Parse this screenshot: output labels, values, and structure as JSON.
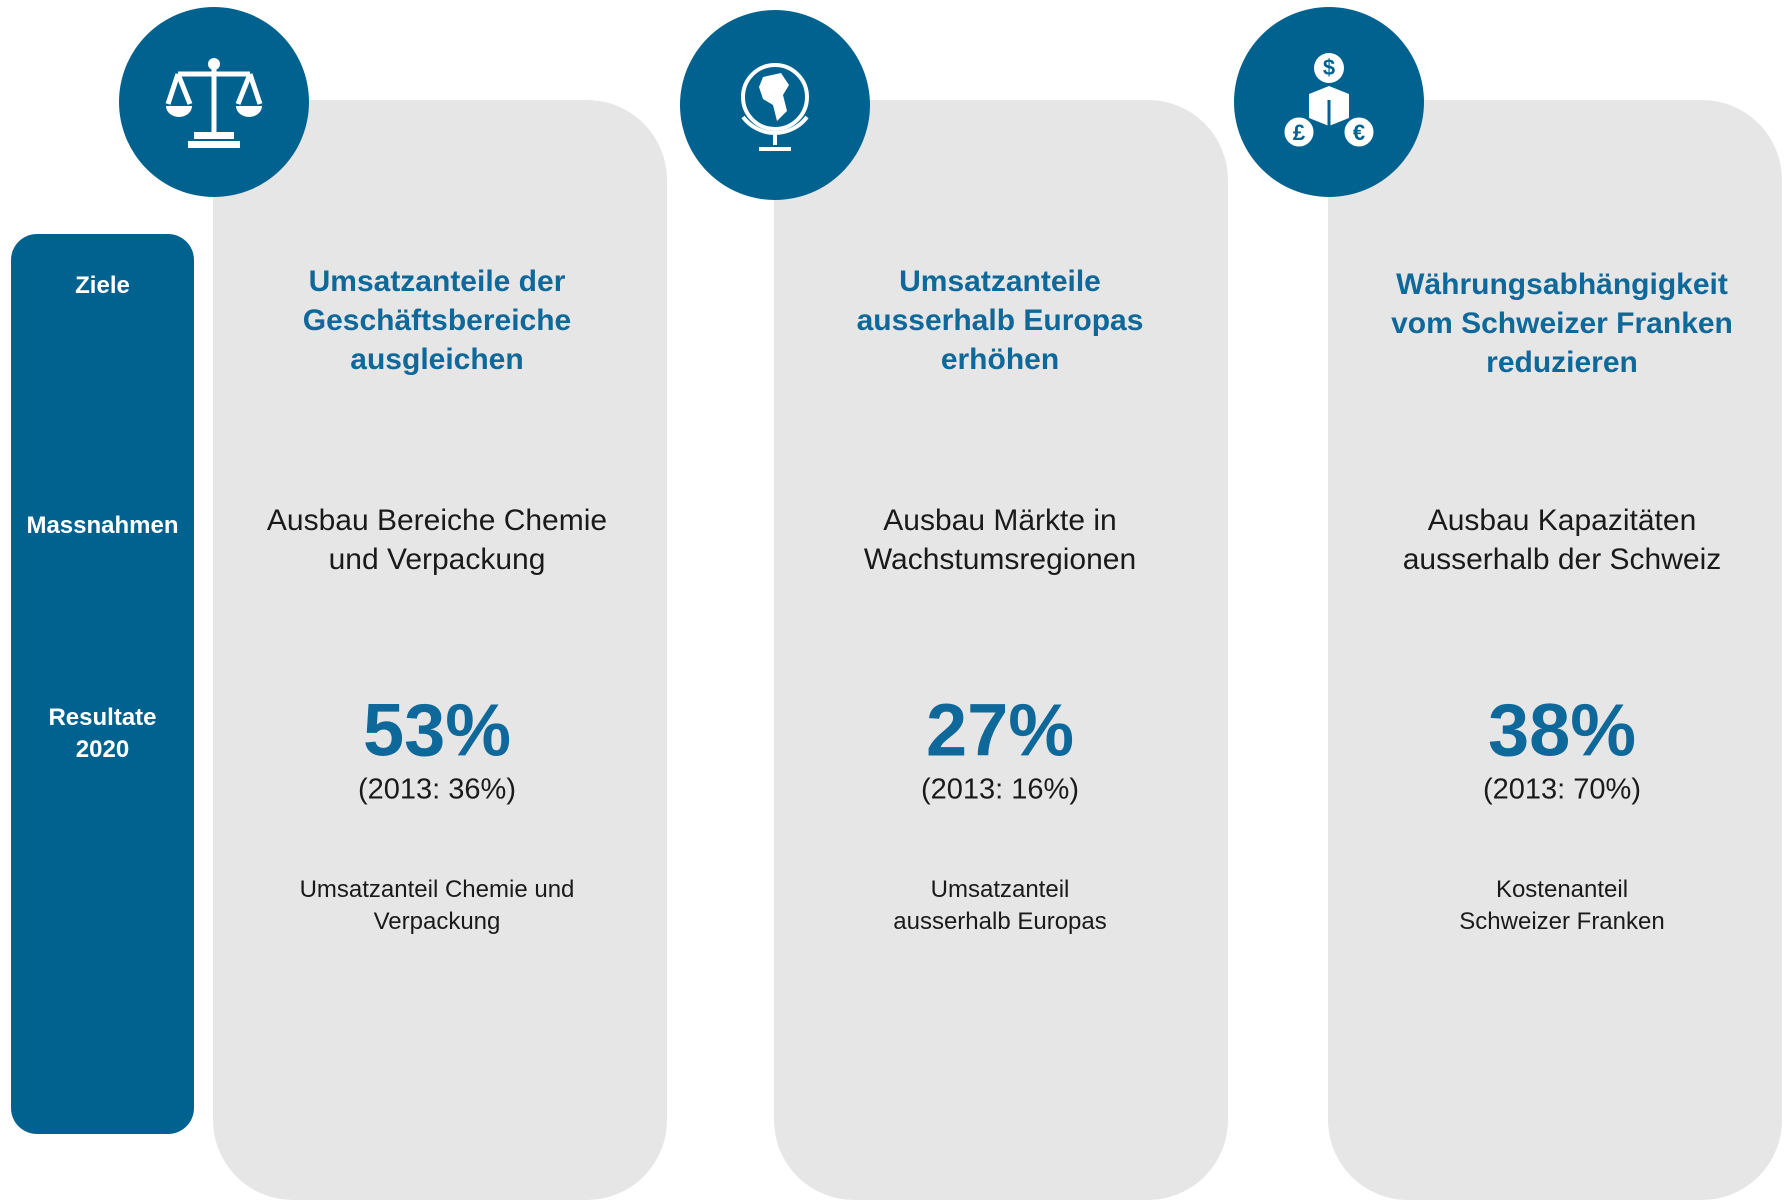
{
  "side_labels": [
    [
      "Ziele"
    ],
    [
      "Massnahmen"
    ],
    [
      "Resultate",
      "2020"
    ]
  ],
  "cards": [
    {
      "title": [
        "Umsatzanteile der",
        "Geschäftsbereiche",
        "ausgleichen"
      ],
      "measure": [
        "Ausbau Bereiche Chemie",
        "und Verpackung"
      ],
      "result": "53%",
      "baseline": "(2013: 36%)",
      "description": [
        "Umsatzanteil Chemie und",
        "Verpackung"
      ]
    },
    {
      "title": [
        "Umsatzanteile",
        "ausserhalb Europas",
        "erhöhen"
      ],
      "measure": [
        "Ausbau Märkte in",
        "Wachstumsregionen"
      ],
      "result": "27%",
      "baseline": "(2013: 16%)",
      "description": [
        "Umsatzanteil",
        "ausserhalb Europas"
      ]
    },
    {
      "title": [
        "Währungsabhängigkeit",
        "vom Schweizer Franken",
        "reduzieren"
      ],
      "measure": [
        "Ausbau Kapazitäten",
        "ausserhalb der Schweiz"
      ],
      "result": "38%",
      "baseline": "(2013: 70%)",
      "description": [
        "Kostenanteil",
        "Schweizer Franken"
      ]
    }
  ]
}
